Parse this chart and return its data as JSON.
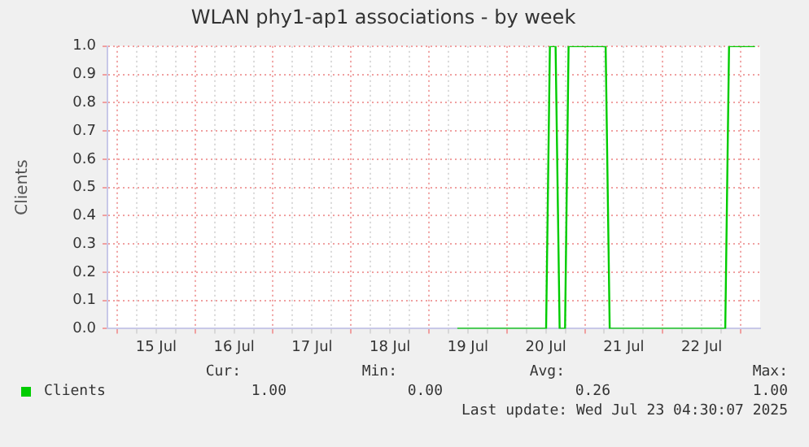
{
  "chart_data": {
    "type": "line",
    "title": "WLAN phy1-ap1 associations - by week",
    "ylabel": "Clients",
    "xlim": [
      "2025-07-14T21:00",
      "2025-07-23T06:00"
    ],
    "xticks": [
      {
        "value": "2025-07-15T00:00",
        "label": null
      },
      {
        "value": "2025-07-15T06:00",
        "label": null
      },
      {
        "value": "2025-07-15T12:00",
        "label": "15 Jul"
      },
      {
        "value": "2025-07-15T18:00",
        "label": null
      },
      {
        "value": "2025-07-16T00:00",
        "label": null
      },
      {
        "value": "2025-07-16T06:00",
        "label": null
      },
      {
        "value": "2025-07-16T12:00",
        "label": "16 Jul"
      },
      {
        "value": "2025-07-16T18:00",
        "label": null
      },
      {
        "value": "2025-07-17T00:00",
        "label": null
      },
      {
        "value": "2025-07-17T06:00",
        "label": null
      },
      {
        "value": "2025-07-17T12:00",
        "label": "17 Jul"
      },
      {
        "value": "2025-07-17T18:00",
        "label": null
      },
      {
        "value": "2025-07-18T00:00",
        "label": null
      },
      {
        "value": "2025-07-18T06:00",
        "label": null
      },
      {
        "value": "2025-07-18T12:00",
        "label": "18 Jul"
      },
      {
        "value": "2025-07-18T18:00",
        "label": null
      },
      {
        "value": "2025-07-19T00:00",
        "label": null
      },
      {
        "value": "2025-07-19T06:00",
        "label": null
      },
      {
        "value": "2025-07-19T12:00",
        "label": "19 Jul"
      },
      {
        "value": "2025-07-19T18:00",
        "label": null
      },
      {
        "value": "2025-07-20T00:00",
        "label": null
      },
      {
        "value": "2025-07-20T06:00",
        "label": null
      },
      {
        "value": "2025-07-20T12:00",
        "label": "20 Jul"
      },
      {
        "value": "2025-07-20T18:00",
        "label": null
      },
      {
        "value": "2025-07-21T00:00",
        "label": null
      },
      {
        "value": "2025-07-21T06:00",
        "label": null
      },
      {
        "value": "2025-07-21T12:00",
        "label": "21 Jul"
      },
      {
        "value": "2025-07-21T18:00",
        "label": null
      },
      {
        "value": "2025-07-22T00:00",
        "label": null
      },
      {
        "value": "2025-07-22T06:00",
        "label": null
      },
      {
        "value": "2025-07-22T12:00",
        "label": "22 Jul"
      },
      {
        "value": "2025-07-22T18:00",
        "label": null
      },
      {
        "value": "2025-07-23T00:00",
        "label": null
      }
    ],
    "ylim": [
      0,
      1
    ],
    "yticks": [
      {
        "value": 0,
        "label": "0.0"
      },
      {
        "value": 0.1,
        "label": "0.1"
      },
      {
        "value": 0.2,
        "label": "0.2"
      },
      {
        "value": 0.3,
        "label": "0.3"
      },
      {
        "value": 0.4,
        "label": "0.4"
      },
      {
        "value": 0.5,
        "label": "0.5"
      },
      {
        "value": 0.6,
        "label": "0.6"
      },
      {
        "value": 0.7,
        "label": "0.7"
      },
      {
        "value": 0.8,
        "label": "0.8"
      },
      {
        "value": 0.9,
        "label": "0.9"
      },
      {
        "value": 1,
        "label": "1.0"
      }
    ],
    "grid": true,
    "legend": "bottom",
    "marker": "none",
    "line_style": "solid",
    "series": [
      {
        "name": "Clients",
        "color": "#00cc00",
        "x": [
          "2025-07-19T08:45",
          "2025-07-20T12:05",
          "2025-07-20T13:15",
          "2025-07-20T15:00",
          "2025-07-20T16:15",
          "2025-07-20T17:55",
          "2025-07-20T19:00",
          "2025-07-21T06:25",
          "2025-07-21T07:40",
          "2025-07-22T19:15",
          "2025-07-22T20:25",
          "2025-07-23T04:25"
        ],
        "values": [
          0,
          0,
          1,
          1,
          0,
          0,
          1,
          1,
          0,
          0,
          1,
          1
        ]
      }
    ],
    "annotations": [
      "Cur:",
      "Min:",
      "Avg:",
      "Max:",
      "1.00",
      "0.00",
      "0.26",
      "1.00",
      "Last update: Wed Jul 23 04:30:07 2025"
    ]
  }
}
